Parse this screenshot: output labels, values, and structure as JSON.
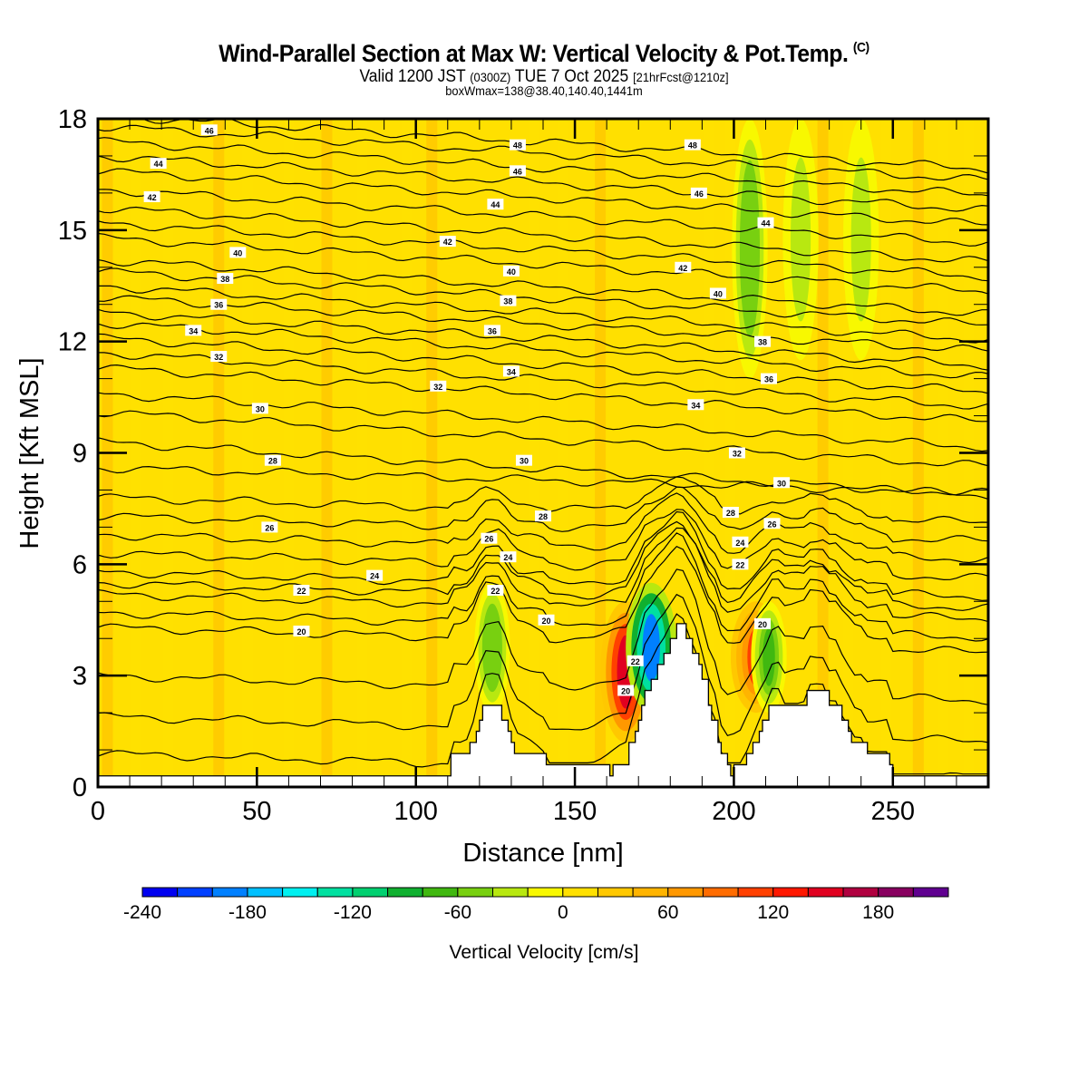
{
  "header": {
    "title": "Wind-Parallel Section at Max W: Vertical Velocity & Pot.Temp.",
    "copyright": "(C)",
    "valid_prefix": "Valid 1200 JST",
    "valid_utc": "(0300Z)",
    "valid_date": "TUE 7 Oct 2025",
    "forecast_info": "[21hrFcst@1210z]",
    "box_info": "boxWmax=138@38.40,140.40,1441m"
  },
  "chart_data": {
    "type": "heatmap",
    "title": "Wind-Parallel Section at Max W: Vertical Velocity & Pot.Temp.",
    "xlabel": "Distance [nm]",
    "ylabel": "Height [Kft MSL]",
    "xlim": [
      0,
      280
    ],
    "ylim": [
      0,
      18
    ],
    "xticks": [
      0,
      50,
      100,
      150,
      200,
      250
    ],
    "yticks": [
      0,
      3,
      6,
      9,
      12,
      15,
      18
    ],
    "grid": false,
    "background_value": 0,
    "fill_variable": "Vertical Velocity [cm/s]",
    "contour_variable": "Potential Temperature",
    "contour_interval": 2,
    "contour_levels": [
      20,
      22,
      24,
      26,
      28,
      30,
      32,
      34,
      36,
      38,
      40,
      42,
      44,
      46,
      48
    ],
    "contour_labels": [
      {
        "x": 35,
        "y": 17.7,
        "v": "46"
      },
      {
        "x": 19,
        "y": 16.8,
        "v": "44"
      },
      {
        "x": 17,
        "y": 15.9,
        "v": "42"
      },
      {
        "x": 44,
        "y": 14.4,
        "v": "40"
      },
      {
        "x": 40,
        "y": 13.7,
        "v": "38"
      },
      {
        "x": 38,
        "y": 13.0,
        "v": "36"
      },
      {
        "x": 30,
        "y": 12.3,
        "v": "34"
      },
      {
        "x": 38,
        "y": 11.6,
        "v": "32"
      },
      {
        "x": 51,
        "y": 10.2,
        "v": "30"
      },
      {
        "x": 55,
        "y": 8.8,
        "v": "28"
      },
      {
        "x": 54,
        "y": 7.0,
        "v": "26"
      },
      {
        "x": 64,
        "y": 5.3,
        "v": "22"
      },
      {
        "x": 87,
        "y": 5.7,
        "v": "24"
      },
      {
        "x": 64,
        "y": 4.2,
        "v": "20"
      },
      {
        "x": 132,
        "y": 17.3,
        "v": "48"
      },
      {
        "x": 132,
        "y": 16.6,
        "v": "46"
      },
      {
        "x": 125,
        "y": 15.7,
        "v": "44"
      },
      {
        "x": 110,
        "y": 14.7,
        "v": "42"
      },
      {
        "x": 130,
        "y": 13.9,
        "v": "40"
      },
      {
        "x": 129,
        "y": 13.1,
        "v": "38"
      },
      {
        "x": 124,
        "y": 12.3,
        "v": "36"
      },
      {
        "x": 130,
        "y": 11.2,
        "v": "34"
      },
      {
        "x": 107,
        "y": 10.8,
        "v": "32"
      },
      {
        "x": 134,
        "y": 8.8,
        "v": "30"
      },
      {
        "x": 140,
        "y": 7.3,
        "v": "28"
      },
      {
        "x": 123,
        "y": 6.7,
        "v": "26"
      },
      {
        "x": 129,
        "y": 6.2,
        "v": "24"
      },
      {
        "x": 125,
        "y": 5.3,
        "v": "22"
      },
      {
        "x": 141,
        "y": 4.5,
        "v": "20"
      },
      {
        "x": 187,
        "y": 17.3,
        "v": "48"
      },
      {
        "x": 189,
        "y": 16.0,
        "v": "46"
      },
      {
        "x": 184,
        "y": 14.0,
        "v": "42"
      },
      {
        "x": 195,
        "y": 13.3,
        "v": "40"
      },
      {
        "x": 210,
        "y": 15.2,
        "v": "44"
      },
      {
        "x": 209,
        "y": 12.0,
        "v": "38"
      },
      {
        "x": 211,
        "y": 11.0,
        "v": "36"
      },
      {
        "x": 188,
        "y": 10.3,
        "v": "34"
      },
      {
        "x": 201,
        "y": 9.0,
        "v": "32"
      },
      {
        "x": 215,
        "y": 8.2,
        "v": "30"
      },
      {
        "x": 199,
        "y": 7.4,
        "v": "28"
      },
      {
        "x": 212,
        "y": 7.1,
        "v": "26"
      },
      {
        "x": 202,
        "y": 6.6,
        "v": "24"
      },
      {
        "x": 202,
        "y": 6.0,
        "v": "22"
      },
      {
        "x": 209,
        "y": 4.4,
        "v": "20"
      },
      {
        "x": 169,
        "y": 3.4,
        "v": "22"
      },
      {
        "x": 166,
        "y": 2.6,
        "v": "20"
      }
    ],
    "vertical_velocity_features": [
      {
        "x": 124,
        "y_range": [
          2.0,
          5.5
        ],
        "value": -60,
        "note": "downdraft near 124 nm"
      },
      {
        "x": 166,
        "y_range": [
          1.2,
          5.0
        ],
        "value": 150,
        "note": "strong updraft"
      },
      {
        "x": 174,
        "y_range": [
          2.0,
          5.5
        ],
        "value": -200,
        "note": "strong downdraft lee slope"
      },
      {
        "x": 207,
        "y_range": [
          2.0,
          5.0
        ],
        "value": 110,
        "note": "updraft"
      },
      {
        "x": 211,
        "y_range": [
          2.0,
          5.0
        ],
        "value": -80,
        "note": "downdraft"
      },
      {
        "x": 205,
        "y_range": [
          11.0,
          18.0
        ],
        "value": -60,
        "note": "upper-level band"
      },
      {
        "x": 221,
        "y_range": [
          11.5,
          18.0
        ],
        "value": -40,
        "note": "upper-level band"
      },
      {
        "x": 240,
        "y_range": [
          11.5,
          18.0
        ],
        "value": -40,
        "note": "upper-level band"
      }
    ],
    "terrain": [
      [
        0,
        0.3
      ],
      [
        110,
        0.3
      ],
      [
        111,
        0.9
      ],
      [
        116,
        0.9
      ],
      [
        117,
        1.2
      ],
      [
        119,
        1.5
      ],
      [
        120,
        1.8
      ],
      [
        121,
        2.2
      ],
      [
        126,
        2.2
      ],
      [
        127,
        1.8
      ],
      [
        129,
        1.5
      ],
      [
        130,
        1.2
      ],
      [
        131,
        0.9
      ],
      [
        140,
        0.9
      ],
      [
        141,
        0.6
      ],
      [
        150,
        0.6
      ],
      [
        160,
        0.6
      ],
      [
        161,
        0.3
      ],
      [
        162,
        0.6
      ],
      [
        166,
        0.6
      ],
      [
        167,
        1.2
      ],
      [
        169,
        1.5
      ],
      [
        170,
        1.8
      ],
      [
        171,
        2.2
      ],
      [
        172,
        2.6
      ],
      [
        174,
        2.9
      ],
      [
        176,
        3.3
      ],
      [
        178,
        3.6
      ],
      [
        180,
        4.0
      ],
      [
        182,
        4.4
      ],
      [
        184,
        4.4
      ],
      [
        185,
        4.0
      ],
      [
        187,
        3.6
      ],
      [
        189,
        3.3
      ],
      [
        190,
        2.9
      ],
      [
        192,
        2.2
      ],
      [
        193,
        1.8
      ],
      [
        195,
        1.2
      ],
      [
        196,
        0.9
      ],
      [
        198,
        0.6
      ],
      [
        199,
        0.3
      ],
      [
        200,
        0.6
      ],
      [
        203,
        0.6
      ],
      [
        204,
        0.9
      ],
      [
        206,
        1.2
      ],
      [
        208,
        1.5
      ],
      [
        209,
        1.8
      ],
      [
        210,
        1.8
      ],
      [
        211,
        2.2
      ],
      [
        213,
        2.2
      ],
      [
        214,
        2.2
      ],
      [
        222,
        2.2
      ],
      [
        223,
        2.6
      ],
      [
        229,
        2.6
      ],
      [
        230,
        2.2
      ],
      [
        233,
        2.2
      ],
      [
        234,
        1.8
      ],
      [
        236,
        1.5
      ],
      [
        237,
        1.2
      ],
      [
        241,
        1.2
      ],
      [
        242,
        0.9
      ],
      [
        248,
        0.9
      ],
      [
        249,
        0.6
      ],
      [
        250,
        0.3
      ],
      [
        280,
        0.3
      ]
    ],
    "colorbar": {
      "label": "Vertical Velocity [cm/s]",
      "min": -240,
      "max": 210,
      "step": 20,
      "tick_labels": [
        "-240",
        "-180",
        "-120",
        "-60",
        "0",
        "60",
        "120",
        "180"
      ],
      "tick_values": [
        -240,
        -180,
        -120,
        -60,
        0,
        60,
        120,
        180
      ],
      "colors": [
        "#0000f0",
        "#0040ff",
        "#0080ff",
        "#00c0ff",
        "#00f0f0",
        "#00e0a0",
        "#00d070",
        "#10b030",
        "#40b810",
        "#78d010",
        "#b8e810",
        "#f8f800",
        "#ffe000",
        "#ffc800",
        "#ffb400",
        "#ff9800",
        "#ff6c00",
        "#ff4000",
        "#ff1800",
        "#e00020",
        "#b00040",
        "#880060",
        "#600090"
      ]
    }
  }
}
